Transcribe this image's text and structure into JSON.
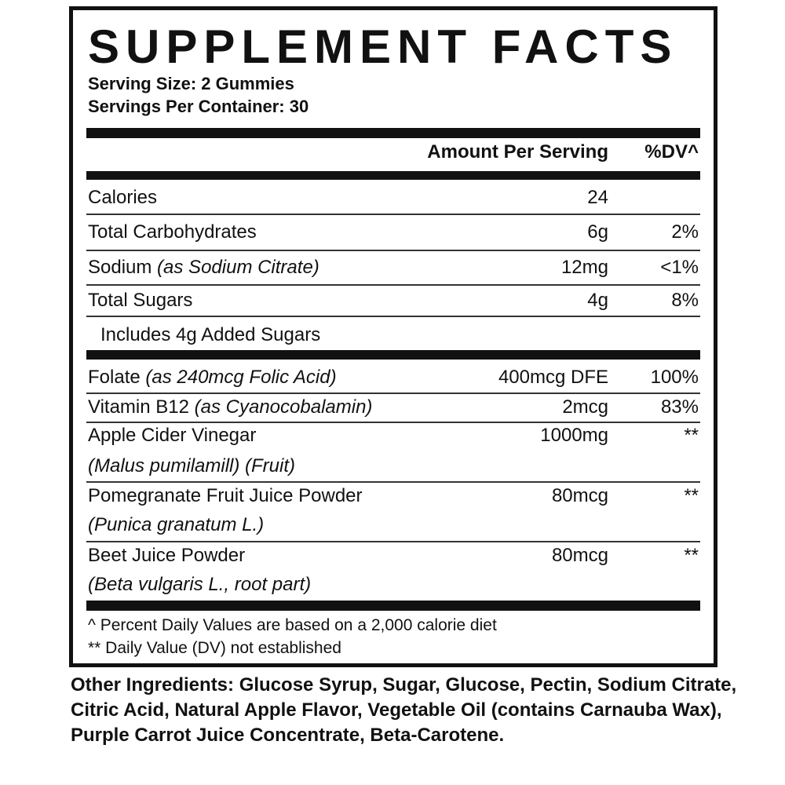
{
  "title": "SUPPLEMENT FACTS",
  "serving_size": "Serving Size: 2 Gummies",
  "servings_per_container": "Servings Per Container: 30",
  "header": {
    "amount": "Amount Per Serving",
    "dv": "%DV^"
  },
  "nutrients": [
    {
      "name": "Calories",
      "detail": "",
      "amount": "24",
      "dv": ""
    },
    {
      "name": "Total Carbohydrates",
      "detail": "",
      "amount": "6g",
      "dv": "2%"
    },
    {
      "name": "Sodium",
      "detail": "(as Sodium Citrate)",
      "amount": "12mg",
      "dv": "<1%"
    },
    {
      "name": "Total Sugars",
      "detail": "",
      "amount": "4g",
      "dv": "8%"
    },
    {
      "name": "Includes 4g Added Sugars",
      "detail": "",
      "amount": "",
      "dv": ""
    }
  ],
  "ingredients": [
    {
      "name": "Folate",
      "detail": "(as 240mcg Folic Acid)",
      "amount": "400mcg DFE",
      "dv": "100%"
    },
    {
      "name": "Vitamin B12",
      "detail": "(as Cyanocobalamin)",
      "amount": "2mcg",
      "dv": "83%"
    },
    {
      "name": "Apple Cider Vinegar",
      "sub": "(Malus pumilamill) (Fruit)",
      "amount": "1000mg",
      "dv": "**"
    },
    {
      "name": "Pomegranate Fruit Juice Powder",
      "sub": "(Punica granatum L.)",
      "amount": "80mcg",
      "dv": "**"
    },
    {
      "name": "Beet Juice Powder",
      "sub": "(Beta vulgaris L., root part)",
      "amount": "80mcg",
      "dv": "**"
    }
  ],
  "footnotes": [
    "^ Percent Daily Values are based on a 2,000 calorie diet",
    "** Daily Value (DV) not established"
  ],
  "other_ingredients": {
    "label": "Other Ingredients:",
    "text": " Glucose Syrup, Sugar, Glucose, Pectin, Sodium Citrate, Citric Acid, Natural Apple Flavor, Vegetable Oil (contains Carnauba Wax), Purple Carrot Juice Concentrate, Beta-Carotene."
  }
}
